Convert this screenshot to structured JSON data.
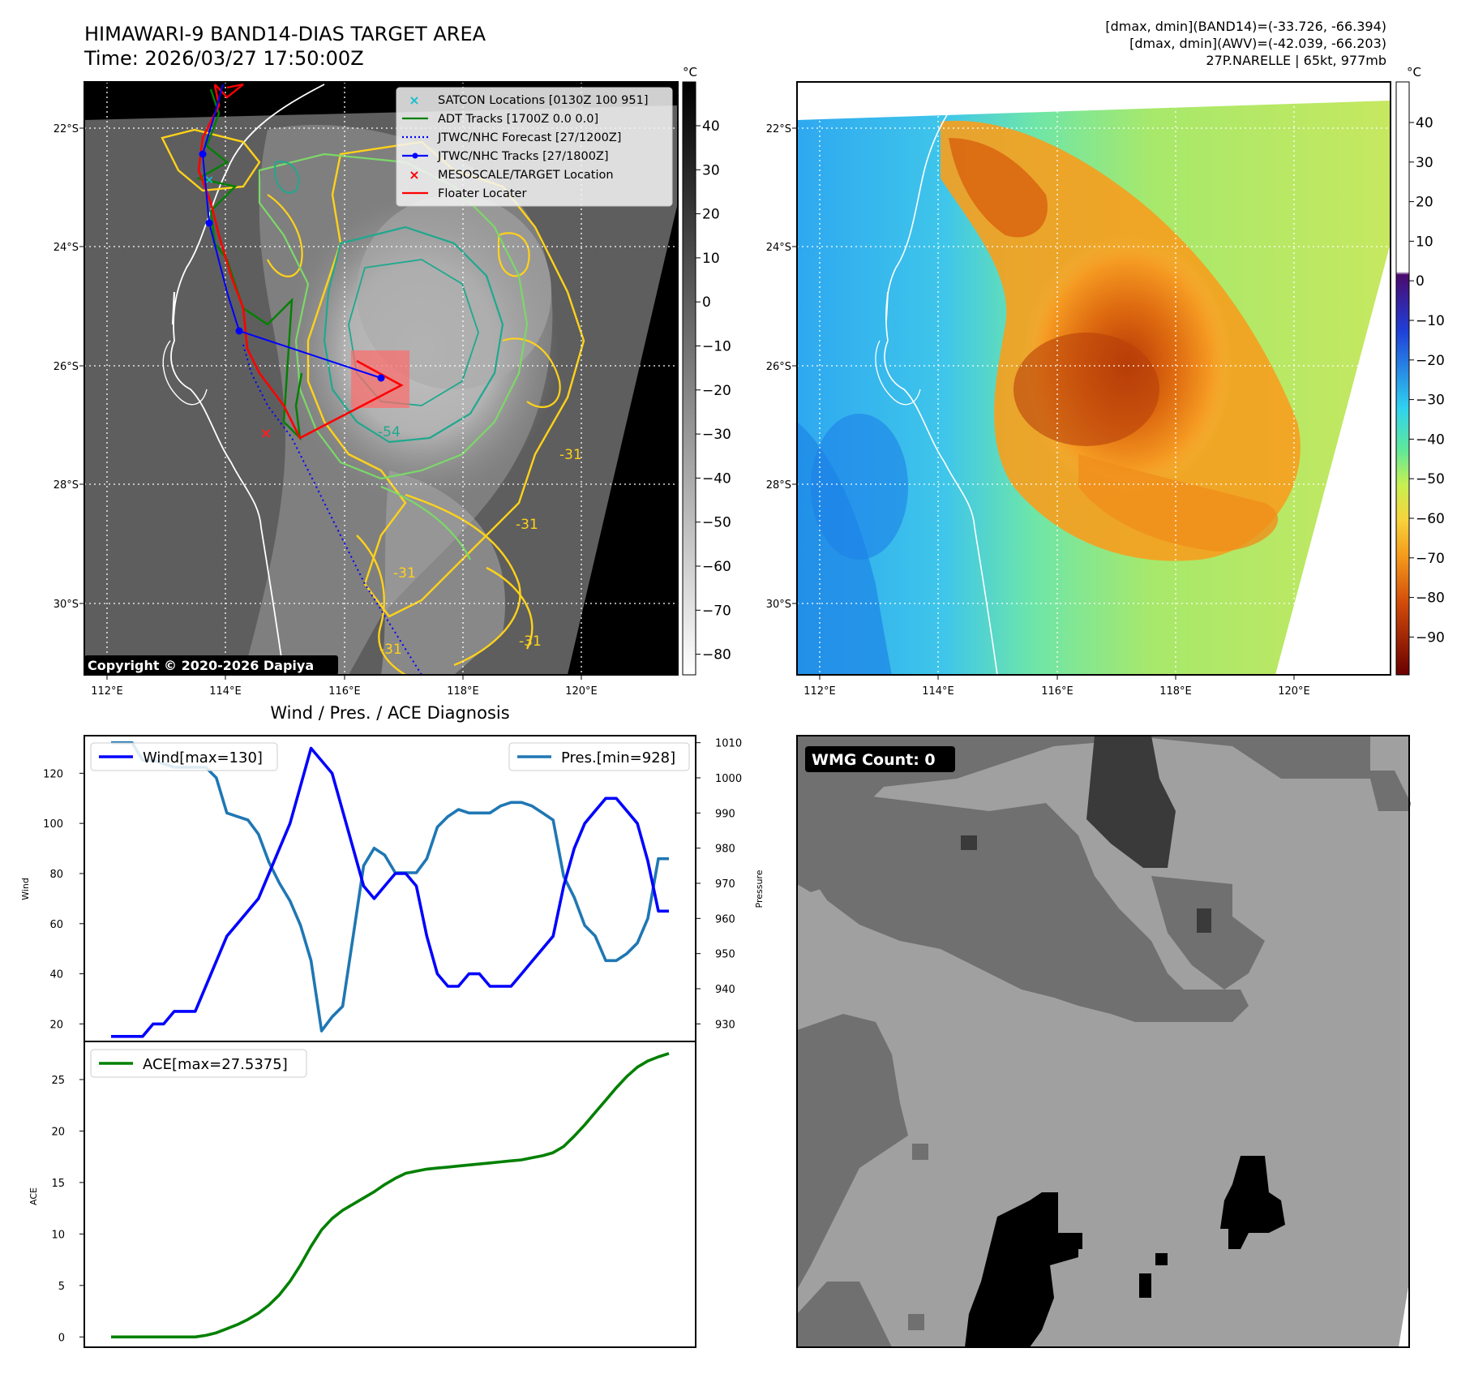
{
  "header": {
    "title_line1": "HIMAWARI-9 BAND14-DIAS TARGET AREA",
    "title_line2": "Time: 2026/03/27 17:50:00Z",
    "info_line1": "[dmax, dmin](BAND14)=(-33.726, -66.394)",
    "info_line2": "[dmax, dmin](AWV)=(-42.039, -66.203)",
    "info_line3": "27P.NARELLE | 65kt, 977mb"
  },
  "map_axes": {
    "lon_labels": [
      "112°E",
      "114°E",
      "116°E",
      "118°E",
      "120°E"
    ],
    "lat_labels": [
      "22°S",
      "24°S",
      "26°S",
      "28°S",
      "30°S"
    ]
  },
  "band14_panel": {
    "colorbar_unit": "°C",
    "colorbar_ticks": [
      "40",
      "30",
      "20",
      "10",
      "0",
      "−10",
      "−20",
      "−30",
      "−40",
      "−50",
      "−60",
      "−70",
      "−80"
    ],
    "copyright": "Copyright © 2020-2026 Dapiya",
    "contour_labels": [
      "-54",
      "-31",
      "-31",
      "-31",
      "-31",
      "-31"
    ],
    "legend": [
      {
        "label": "SATCON Locations [0130Z 100 951]",
        "color": "#17becf",
        "kind": "x"
      },
      {
        "label": "ADT Tracks [1700Z 0.0 0.0]",
        "color": "#008000",
        "kind": "line"
      },
      {
        "label": "JTWC/NHC Forecast [27/1200Z]",
        "color": "#0000ff",
        "kind": "dotted"
      },
      {
        "label": "JTWC/NHC Tracks [27/1800Z]",
        "color": "#0000ff",
        "kind": "line-dot"
      },
      {
        "label": "MESOSCALE/TARGET Location",
        "color": "#ff0000",
        "kind": "x"
      },
      {
        "label": "Floater Locater",
        "color": "#ff0000",
        "kind": "line"
      }
    ]
  },
  "awv_panel": {
    "colorbar_unit": "°C",
    "colorbar_ticks": [
      "40",
      "30",
      "20",
      "10",
      "0",
      "−10",
      "−20",
      "−30",
      "−40",
      "−50",
      "−60",
      "−70",
      "−80",
      "−90"
    ]
  },
  "diagnosis": {
    "title": "Wind / Pres. / ACE Diagnosis",
    "wind_axis_label": "Wind",
    "pressure_axis_label": "Pressure",
    "ace_axis_label": "ACE",
    "wind_legend": "Wind[max=130]",
    "pres_legend": "Pres.[min=928]",
    "ace_legend": "ACE[max=27.5375]",
    "wind_ticks": [
      "20",
      "40",
      "60",
      "80",
      "100",
      "120"
    ],
    "pres_ticks": [
      "930",
      "940",
      "950",
      "960",
      "970",
      "980",
      "990",
      "1000",
      "1010"
    ],
    "ace_ticks": [
      "0",
      "5",
      "10",
      "15",
      "20",
      "25"
    ]
  },
  "wmg_panel": {
    "label": "WMG Count: 0"
  },
  "chart_data": [
    {
      "type": "line",
      "title": "Wind / Pres. / ACE Diagnosis",
      "ylabel": "Wind",
      "ylabel_right": "Pressure",
      "ylim": [
        13,
        135
      ],
      "ylim_right": [
        925,
        1012
      ],
      "series": [
        {
          "name": "Wind[max=130]",
          "color": "#0000ff",
          "axis": "left",
          "values": [
            15,
            15,
            15,
            15,
            20,
            20,
            25,
            25,
            25,
            35,
            45,
            55,
            60,
            65,
            70,
            80,
            90,
            100,
            115,
            130,
            125,
            120,
            105,
            90,
            75,
            70,
            75,
            80,
            80,
            75,
            55,
            40,
            35,
            35,
            40,
            40,
            35,
            35,
            35,
            40,
            45,
            50,
            55,
            75,
            90,
            100,
            105,
            110,
            110,
            105,
            100,
            85,
            65,
            65
          ]
        },
        {
          "name": "Pres.[min=928]",
          "color": "#1f77b4",
          "axis": "right",
          "values": [
            1010,
            1010,
            1010,
            1005,
            1005,
            1004,
            1003,
            1003,
            1003,
            1003,
            1000,
            990,
            989,
            988,
            984,
            976,
            970,
            965,
            958,
            948,
            928,
            932,
            935,
            955,
            975,
            980,
            978,
            973,
            973,
            973,
            977,
            986,
            989,
            991,
            990,
            990,
            990,
            992,
            993,
            993,
            992,
            990,
            988,
            972,
            966,
            958,
            955,
            948,
            948,
            950,
            953,
            960,
            977,
            977
          ]
        },
        {
          "name": "ACE[max=27.5375]",
          "color": "#008000",
          "axis": "ace",
          "ylim": [
            -1,
            28.7
          ],
          "values": [
            0,
            0,
            0,
            0,
            0,
            0,
            0,
            0,
            0,
            0.15,
            0.4,
            0.8,
            1.2,
            1.7,
            2.3,
            3.1,
            4.1,
            5.4,
            7.0,
            8.8,
            10.4,
            11.5,
            12.3,
            12.9,
            13.5,
            14.1,
            14.8,
            15.4,
            15.9,
            16.1,
            16.3,
            16.4,
            16.5,
            16.6,
            16.7,
            16.8,
            16.9,
            17.0,
            17.1,
            17.2,
            17.4,
            17.6,
            17.9,
            18.5,
            19.5,
            20.6,
            21.8,
            23.0,
            24.2,
            25.3,
            26.2,
            26.8,
            27.2,
            27.5375
          ]
        }
      ]
    }
  ]
}
